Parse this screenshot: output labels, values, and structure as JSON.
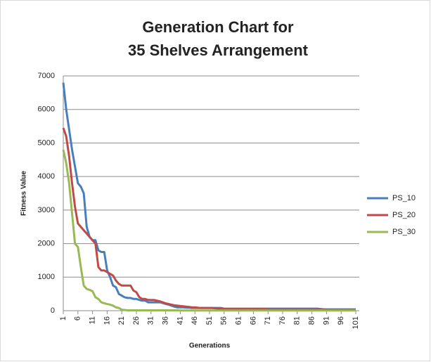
{
  "chart_data": {
    "type": "line",
    "title": [
      "Generation Chart for",
      "35 Shelves Arrangement"
    ],
    "x_label": "Generations",
    "y_label": "Fitness Value",
    "x": [
      1,
      2,
      3,
      4,
      5,
      6,
      7,
      8,
      9,
      10,
      11,
      12,
      13,
      14,
      15,
      16,
      17,
      18,
      19,
      20,
      21,
      22,
      23,
      24,
      25,
      26,
      27,
      28,
      29,
      30,
      31,
      32,
      33,
      34,
      35,
      36,
      37,
      38,
      39,
      40,
      41,
      42,
      43,
      44,
      45,
      46,
      47,
      48,
      49,
      50,
      51,
      52,
      53,
      54,
      55,
      56,
      57,
      58,
      59,
      60,
      61,
      62,
      63,
      64,
      65,
      66,
      67,
      68,
      69,
      70,
      71,
      72,
      73,
      74,
      75,
      76,
      77,
      78,
      79,
      80,
      81,
      82,
      83,
      84,
      85,
      86,
      87,
      88,
      89,
      90,
      91,
      92,
      93,
      94,
      95,
      96,
      97,
      98,
      99,
      100,
      101
    ],
    "xlim": [
      1,
      101
    ],
    "xticks": [
      1,
      6,
      11,
      16,
      21,
      26,
      31,
      36,
      41,
      46,
      51,
      56,
      61,
      66,
      71,
      76,
      81,
      86,
      91,
      96,
      101
    ],
    "ylim": [
      0,
      7000
    ],
    "yticks": [
      0,
      1000,
      2000,
      3000,
      4000,
      5000,
      6000,
      7000
    ],
    "grid": true,
    "legend": "right",
    "series": [
      {
        "name": "PS_10",
        "color": "#4a7ebb",
        "values": [
          6800,
          6000,
          5400,
          4800,
          4300,
          3800,
          3700,
          3500,
          2500,
          2200,
          2100,
          2100,
          1800,
          1750,
          1750,
          1200,
          1000,
          750,
          700,
          500,
          450,
          400,
          380,
          380,
          350,
          350,
          320,
          300,
          300,
          250,
          250,
          250,
          250,
          250,
          230,
          200,
          180,
          150,
          120,
          100,
          100,
          100,
          90,
          90,
          80,
          80,
          80,
          80,
          80,
          80,
          80,
          80,
          80,
          80,
          80,
          60,
          60,
          60,
          60,
          60,
          60,
          60,
          60,
          60,
          60,
          60,
          60,
          60,
          60,
          60,
          60,
          60,
          60,
          60,
          60,
          60,
          60,
          60,
          60,
          60,
          60,
          60,
          60,
          60,
          60,
          60,
          60,
          60,
          50,
          40,
          40,
          40,
          40,
          40,
          40,
          40,
          40,
          40,
          40,
          40,
          40
        ]
      },
      {
        "name": "PS_20",
        "color": "#be4b48",
        "values": [
          5450,
          5200,
          4600,
          3800,
          3100,
          2600,
          2500,
          2400,
          2300,
          2200,
          2100,
          2000,
          1300,
          1200,
          1200,
          1150,
          1100,
          1050,
          900,
          800,
          750,
          750,
          750,
          750,
          600,
          550,
          400,
          350,
          350,
          320,
          320,
          320,
          300,
          280,
          250,
          220,
          200,
          180,
          160,
          150,
          140,
          130,
          120,
          110,
          100,
          100,
          90,
          80,
          80,
          80,
          80,
          80,
          70,
          60,
          60,
          50,
          50,
          50,
          50,
          50,
          50,
          50,
          50,
          50,
          50,
          50,
          50,
          50,
          50,
          50,
          40,
          40,
          40,
          40,
          40,
          40,
          40,
          40,
          40,
          40,
          40,
          40,
          40,
          40,
          40,
          40,
          40,
          40,
          40,
          40,
          30,
          30,
          30,
          30,
          30,
          30,
          30,
          30,
          30,
          30,
          30
        ]
      },
      {
        "name": "PS_30",
        "color": "#98b954",
        "values": [
          4800,
          4400,
          3800,
          2900,
          2000,
          1900,
          1300,
          750,
          650,
          620,
          580,
          400,
          350,
          250,
          220,
          200,
          180,
          150,
          100,
          80,
          30,
          20,
          10,
          10,
          10,
          10,
          10,
          10,
          10,
          10,
          10,
          10,
          10,
          10,
          10,
          10,
          10,
          10,
          10,
          10,
          5,
          5,
          5,
          5,
          5,
          5,
          5,
          5,
          5,
          5,
          5,
          5,
          5,
          5,
          5,
          5,
          5,
          5,
          5,
          5,
          5,
          5,
          5,
          5,
          5,
          5,
          5,
          5,
          5,
          5,
          5,
          5,
          5,
          5,
          5,
          5,
          5,
          5,
          5,
          5,
          5,
          5,
          5,
          5,
          5,
          5,
          5,
          5,
          5,
          5,
          5,
          5,
          5,
          5,
          5,
          5,
          5,
          5,
          5,
          5,
          5
        ]
      }
    ]
  }
}
